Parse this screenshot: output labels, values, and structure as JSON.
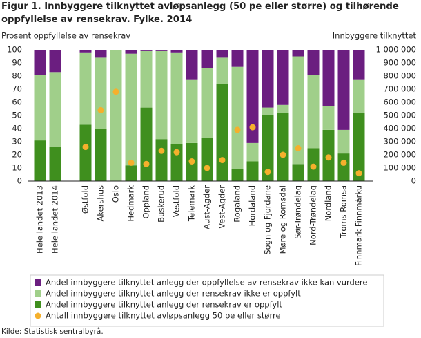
{
  "chart_data": {
    "type": "bar",
    "title": "Figur 1. Innbyggere tilknyttet avløpsanlegg (50 pe eller større) og tilhørende oppfyllelse av rensekrav. Fylke. 2014",
    "ylabel": "Prosent  oppfyllelse  av rensekrav",
    "y2label": "Innbyggere tilknyttet",
    "source": "Kilde: Statistisk sentralbyrå.",
    "categories": [
      "Hele landet 2013",
      "Hele landet 2014",
      null,
      "Østfold",
      "Akershus",
      "Oslo",
      "Hedmark",
      "Oppland",
      "Buskerud",
      "Vestfold",
      "Telemark",
      "Aust-Agder",
      "Vest-Agder",
      "Rogaland",
      "Hordaland",
      "Sogn og Fjordane",
      "Møre og Romsdal",
      "Sør-Trøndelag",
      "Nord-Trøndelag",
      "Nordland",
      "Troms Romsa",
      "Finnmark Finnmárku"
    ],
    "series": [
      {
        "name": "Andel innbyggere tilknyttet anlegg der oppfyllelse av rensekrav ikke kan vurdere",
        "color": "#6b1e80",
        "values": [
          19,
          17,
          null,
          2,
          6,
          0,
          3,
          1,
          1,
          2,
          23,
          14,
          6,
          13,
          71,
          44,
          42,
          5,
          19,
          43,
          61,
          23
        ]
      },
      {
        "name": "Andel innbyggere tilknyttet anlegg der rensekrav ikke er oppfylt",
        "color": "#a0cf8a",
        "values": [
          50,
          57,
          null,
          55,
          54,
          100,
          85,
          43,
          67,
          70,
          48,
          53,
          20,
          78,
          14,
          6,
          6,
          82,
          56,
          18,
          18,
          25
        ]
      },
      {
        "name": "Andel innbyggere tilknyttet anlegg der rensekrav er oppfylt",
        "color": "#3f8f1e",
        "values": [
          31,
          26,
          null,
          43,
          40,
          0,
          12,
          56,
          32,
          28,
          29,
          33,
          74,
          9,
          15,
          50,
          52,
          13,
          25,
          39,
          21,
          52
        ]
      },
      {
        "name": "Antall innbyggere tilknyttet avløpsanlegg 50 pe eller større",
        "color": "#f5b02c",
        "type": "scatter",
        "axis": "y2",
        "values": [
          null,
          null,
          null,
          260000,
          540000,
          680000,
          140000,
          130000,
          230000,
          220000,
          150000,
          100000,
          160000,
          390000,
          410000,
          70000,
          200000,
          250000,
          110000,
          180000,
          140000,
          60000
        ]
      }
    ],
    "ylim": [
      0,
      100
    ],
    "yticks": [
      0,
      10,
      20,
      30,
      40,
      50,
      60,
      70,
      80,
      90,
      100
    ],
    "y2lim": [
      0,
      1000000
    ],
    "y2ticks": [
      0,
      {
        "value": 100000,
        "label": "100 000"
      },
      {
        "value": 200000,
        "label": "200 000"
      },
      {
        "value": 300000,
        "label": "300 000"
      },
      {
        "value": 400000,
        "label": "400 000"
      },
      {
        "value": 500000,
        "label": "500 000"
      },
      {
        "value": 600000,
        "label": "600 000"
      },
      {
        "value": 700000,
        "label": "700 000"
      },
      {
        "value": 800000,
        "label": "800 000"
      },
      {
        "value": 900000,
        "label": "900 000"
      },
      {
        "value": 1000000,
        "label": "1 000 000"
      }
    ],
    "stacked": true,
    "grid": false
  }
}
